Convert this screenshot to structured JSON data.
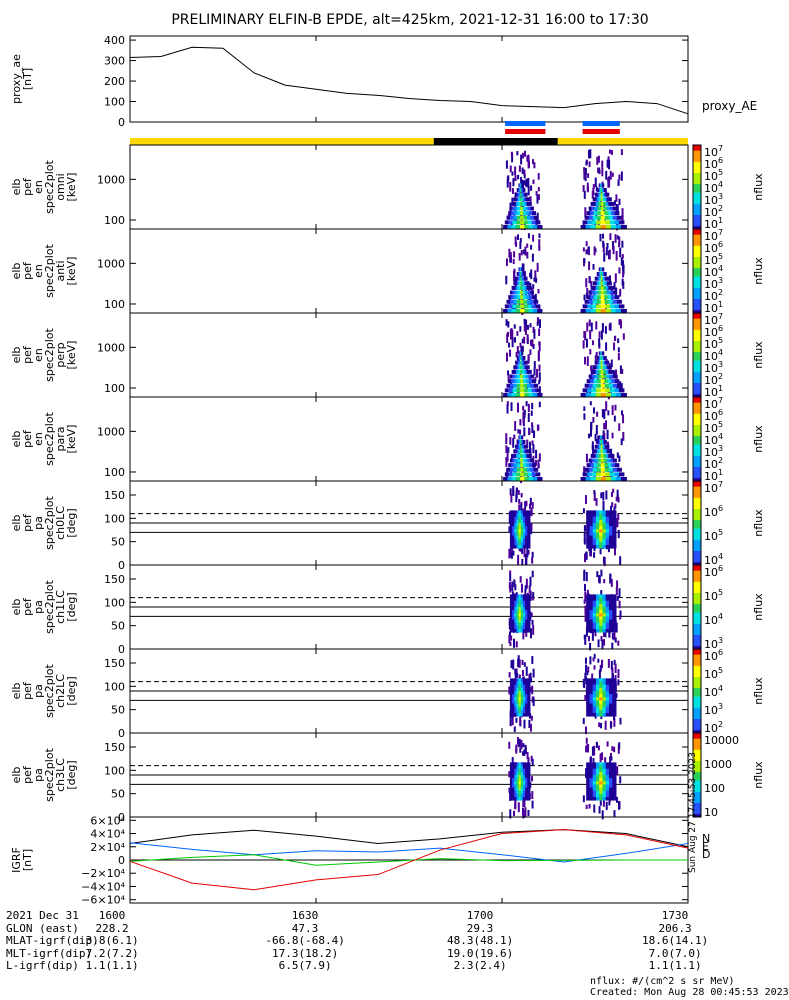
{
  "title": "PRELIMINARY ELFIN-B EPDE, alt=425km, 2021-12-31 16:00 to 17:30",
  "colors": {
    "blue": "#0064ff",
    "red": "#e60000",
    "yellow": "#ffd700",
    "black": "#000000",
    "green": "#00c800"
  },
  "chart_data": {
    "type": "line",
    "time_range": [
      "16:00",
      "17:30"
    ],
    "panels": [
      {
        "id": "proxy_ae",
        "type": "line",
        "ylabel": [
          "proxy_ae",
          "[nT]"
        ],
        "legend": "proxy_AE",
        "ylim": [
          0,
          420
        ],
        "yticks": [
          {
            "v": 0,
            "t": "0"
          },
          {
            "v": 100,
            "t": "100"
          },
          {
            "v": 200,
            "t": "200"
          },
          {
            "v": 300,
            "t": "300"
          },
          {
            "v": 400,
            "t": "400"
          }
        ],
        "x_min": [
          0,
          5,
          10,
          15,
          20,
          25,
          30,
          35,
          40,
          45,
          50,
          55,
          60,
          65,
          70,
          75,
          80,
          85,
          90
        ],
        "values": [
          315,
          320,
          365,
          360,
          240,
          180,
          160,
          140,
          130,
          115,
          105,
          100,
          80,
          75,
          70,
          90,
          100,
          90,
          40
        ]
      },
      {
        "id": "status_bar",
        "type": "bar",
        "segments": [
          {
            "start": 0,
            "end": 49,
            "color": "#ffd700"
          },
          {
            "start": 49,
            "end": 69,
            "color": "#000000"
          },
          {
            "start": 69,
            "end": 90,
            "color": "#ffd700"
          }
        ],
        "intervals": [
          {
            "start": 60.5,
            "end": 67,
            "color": "#0064ff"
          },
          {
            "start": 60.5,
            "end": 67,
            "color": "#e60000"
          },
          {
            "start": 73,
            "end": 79,
            "color": "#0064ff"
          },
          {
            "start": 73,
            "end": 79,
            "color": "#e60000"
          }
        ]
      },
      {
        "id": "spec_omni",
        "type": "heatmap",
        "ylabel": [
          "elb",
          "pef",
          "en",
          "spec2plot",
          "omni",
          "[keV]"
        ],
        "yticks": [
          {
            "v": 1000,
            "t": "1000"
          },
          {
            "v": 100,
            "t": "100"
          }
        ],
        "yscale": "log",
        "bursts": [
          {
            "start": 60.5,
            "end": 66
          },
          {
            "start": 73,
            "end": 79.5
          }
        ],
        "colorbar": {
          "label": "nflux",
          "ticks": [
            "10^7",
            "10^6",
            "10^5",
            "10^4",
            "10^3",
            "10^2",
            "10^1"
          ]
        }
      },
      {
        "id": "spec_anti",
        "type": "heatmap",
        "ylabel": [
          "elb",
          "pef",
          "en",
          "spec2plot",
          "anti",
          "[keV]"
        ],
        "yticks": [
          {
            "v": 1000,
            "t": "1000"
          },
          {
            "v": 100,
            "t": "100"
          }
        ],
        "yscale": "log",
        "bursts": [
          {
            "start": 60.5,
            "end": 66
          },
          {
            "start": 73,
            "end": 79.5
          }
        ],
        "colorbar": {
          "label": "nflux",
          "ticks": [
            "10^7",
            "10^6",
            "10^5",
            "10^4",
            "10^3",
            "10^2",
            "10^1"
          ]
        }
      },
      {
        "id": "spec_perp",
        "type": "heatmap",
        "ylabel": [
          "elb",
          "pef",
          "en",
          "spec2plot",
          "perp",
          "[keV]"
        ],
        "yticks": [
          {
            "v": 1000,
            "t": "1000"
          },
          {
            "v": 100,
            "t": "100"
          }
        ],
        "yscale": "log",
        "bursts": [
          {
            "start": 60.5,
            "end": 66
          },
          {
            "start": 73,
            "end": 79.5
          }
        ],
        "colorbar": {
          "label": "nflux",
          "ticks": [
            "10^7",
            "10^6",
            "10^5",
            "10^4",
            "10^3",
            "10^2",
            "10^1"
          ]
        }
      },
      {
        "id": "spec_para",
        "type": "heatmap",
        "ylabel": [
          "elb",
          "pef",
          "en",
          "spec2plot",
          "para",
          "[keV]"
        ],
        "yticks": [
          {
            "v": 1000,
            "t": "1000"
          },
          {
            "v": 100,
            "t": "100"
          }
        ],
        "yscale": "log",
        "bursts": [
          {
            "start": 60.5,
            "end": 66
          },
          {
            "start": 73,
            "end": 79.5
          }
        ],
        "colorbar": {
          "label": "nflux",
          "ticks": [
            "10^7",
            "10^6",
            "10^5",
            "10^4",
            "10^3",
            "10^2",
            "10^1"
          ]
        }
      },
      {
        "id": "pa_ch0",
        "type": "heatmap",
        "ylabel": [
          "elb",
          "pef",
          "pa",
          "spec2plot",
          "ch0LC",
          "[deg]"
        ],
        "ylim": [
          0,
          180
        ],
        "yticks": [
          {
            "v": 0,
            "t": "0"
          },
          {
            "v": 50,
            "t": "50"
          },
          {
            "v": 100,
            "t": "100"
          },
          {
            "v": 150,
            "t": "150"
          }
        ],
        "lines": [
          {
            "y": 110,
            "style": "dash"
          },
          {
            "y": 90,
            "style": "solid"
          },
          {
            "y": 70,
            "style": "solid"
          }
        ],
        "bursts": [
          {
            "start": 61,
            "end": 65
          },
          {
            "start": 73,
            "end": 79
          }
        ],
        "colorbar": {
          "label": "nflux",
          "ticks": [
            "10^7",
            "10^6",
            "10^5",
            "10^4"
          ]
        }
      },
      {
        "id": "pa_ch1",
        "type": "heatmap",
        "ylabel": [
          "elb",
          "pef",
          "pa",
          "spec2plot",
          "ch1LC",
          "[deg]"
        ],
        "ylim": [
          0,
          180
        ],
        "yticks": [
          {
            "v": 0,
            "t": "0"
          },
          {
            "v": 50,
            "t": "50"
          },
          {
            "v": 100,
            "t": "100"
          },
          {
            "v": 150,
            "t": "150"
          }
        ],
        "lines": [
          {
            "y": 110,
            "style": "dash"
          },
          {
            "y": 90,
            "style": "solid"
          },
          {
            "y": 70,
            "style": "solid"
          }
        ],
        "bursts": [
          {
            "start": 61,
            "end": 65
          },
          {
            "start": 73,
            "end": 79
          }
        ],
        "colorbar": {
          "label": "nflux",
          "ticks": [
            "10^6",
            "10^5",
            "10^4",
            "10^3"
          ]
        }
      },
      {
        "id": "pa_ch2",
        "type": "heatmap",
        "ylabel": [
          "elb",
          "pef",
          "pa",
          "spec2plot",
          "ch2LC",
          "[deg]"
        ],
        "ylim": [
          0,
          180
        ],
        "yticks": [
          {
            "v": 0,
            "t": "0"
          },
          {
            "v": 50,
            "t": "50"
          },
          {
            "v": 100,
            "t": "100"
          },
          {
            "v": 150,
            "t": "150"
          }
        ],
        "lines": [
          {
            "y": 110,
            "style": "dash"
          },
          {
            "y": 90,
            "style": "solid"
          },
          {
            "y": 70,
            "style": "solid"
          }
        ],
        "bursts": [
          {
            "start": 61,
            "end": 65
          },
          {
            "start": 73,
            "end": 79
          }
        ],
        "colorbar": {
          "label": "nflux",
          "ticks": [
            "10^6",
            "10^5",
            "10^4",
            "10^3",
            "10^2"
          ]
        }
      },
      {
        "id": "pa_ch3",
        "type": "heatmap",
        "ylabel": [
          "elb",
          "pef",
          "pa",
          "spec2plot",
          "ch3LC",
          "[deg]"
        ],
        "ylim": [
          0,
          180
        ],
        "yticks": [
          {
            "v": 0,
            "t": "0"
          },
          {
            "v": 50,
            "t": "50"
          },
          {
            "v": 100,
            "t": "100"
          },
          {
            "v": 150,
            "t": "150"
          }
        ],
        "lines": [
          {
            "y": 110,
            "style": "dash"
          },
          {
            "y": 90,
            "style": "solid"
          },
          {
            "y": 70,
            "style": "solid"
          }
        ],
        "bursts": [
          {
            "start": 61,
            "end": 65
          },
          {
            "start": 73,
            "end": 79
          }
        ],
        "colorbar": {
          "label": "nflux",
          "ticks": [
            "10000",
            "1000",
            "100",
            "10"
          ]
        }
      },
      {
        "id": "igrf",
        "type": "line",
        "ylabel": [
          "IGRF",
          "[nT]"
        ],
        "ylim": [
          -65000,
          65000
        ],
        "yticks": [
          {
            "v": 60000,
            "t": "6×10⁴"
          },
          {
            "v": 40000,
            "t": "4×10⁴"
          },
          {
            "v": 20000,
            "t": "2×10⁴"
          },
          {
            "v": 0,
            "t": "0"
          },
          {
            "v": -20000,
            "t": "−2×10⁴"
          },
          {
            "v": -40000,
            "t": "−4×10⁴"
          },
          {
            "v": -60000,
            "t": "−6×10⁴"
          }
        ],
        "legend": [
          "N",
          "E",
          "D"
        ],
        "x_min": [
          0,
          10,
          20,
          30,
          40,
          50,
          60,
          70,
          80,
          90
        ],
        "series": [
          {
            "name": "black",
            "color": "#000000",
            "values": [
              25000,
              38000,
              45000,
              36000,
              25000,
              32000,
              42000,
              46000,
              40000,
              20000
            ]
          },
          {
            "name": "blue",
            "color": "#0064ff",
            "values": [
              26000,
              16000,
              8000,
              14000,
              12000,
              18000,
              8000,
              -3000,
              10000,
              25000
            ]
          },
          {
            "name": "green",
            "color": "#00c800",
            "values": [
              -2000,
              4000,
              8000,
              -8000,
              -3000,
              2000,
              -1000,
              -500,
              0,
              0
            ]
          },
          {
            "name": "red",
            "color": "#e60000",
            "values": [
              -2000,
              -35000,
              -45000,
              -30000,
              -22000,
              15000,
              40000,
              46000,
              38000,
              18000
            ]
          }
        ]
      }
    ],
    "xticks": [
      {
        "v": 0,
        "t": "1600"
      },
      {
        "v": 30,
        "t": "1630"
      },
      {
        "v": 60,
        "t": "1700"
      },
      {
        "v": 90,
        "t": "1730"
      }
    ]
  },
  "footer": {
    "rows": [
      {
        "label": "2021 Dec 31",
        "values": [
          "1600",
          "1630",
          "1700",
          "1730"
        ]
      },
      {
        "label": "GLON (east)",
        "values": [
          "228.2",
          "47.3",
          "29.3",
          "206.3"
        ]
      },
      {
        "label": "MLAT-igrf(dip)",
        "values": [
          "3.8(6.1)",
          "-66.8(-68.4)",
          "48.3(48.1)",
          "18.6(14.1)"
        ]
      },
      {
        "label": "MLT-igrf(dip)",
        "values": [
          "7.2(7.2)",
          "17.3(18.2)",
          "19.0(19.6)",
          "7.0(7.0)"
        ]
      },
      {
        "label": "L-igrf(dip)",
        "values": [
          "1.1(1.1)",
          "6.5(7.9)",
          "2.3(2.4)",
          "1.1(1.1)"
        ]
      }
    ],
    "units_note": "nflux: #/(cm^2 s sr MeV)",
    "created": "Created: Mon Aug 28 00:45:53 2023",
    "side_stamp": "Sun Aug 27 17:45:53 2023"
  }
}
